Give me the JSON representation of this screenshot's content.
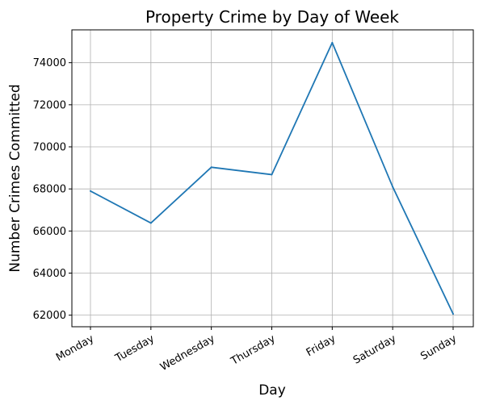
{
  "chart_data": {
    "type": "line",
    "title": "Property Crime by Day of Week",
    "xlabel": "Day",
    "ylabel": "Number Crimes Committed",
    "categories": [
      "Monday",
      "Tuesday",
      "Wednesday",
      "Thursday",
      "Friday",
      "Saturday",
      "Sunday"
    ],
    "series": [
      {
        "values": [
          67900,
          66380,
          69030,
          68680,
          74950,
          68100,
          62060
        ],
        "color": "#1f77b4"
      }
    ],
    "ylim": [
      61450,
      75560
    ],
    "yticks": [
      62000,
      64000,
      66000,
      68000,
      70000,
      72000,
      74000
    ],
    "grid": true,
    "legend": "none"
  }
}
